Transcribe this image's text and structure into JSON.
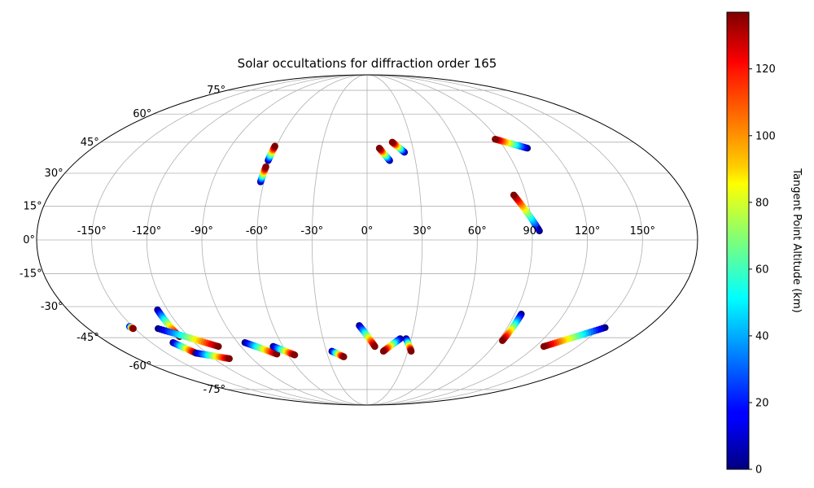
{
  "chart_data": {
    "type": "scatter",
    "projection": "mollweide",
    "title": "Solar occultations for diffraction order 165",
    "xlabel": "",
    "ylabel": "",
    "xlim": [
      -180,
      180
    ],
    "ylim": [
      -90,
      90
    ],
    "grid": true,
    "lon_tick_labels": [
      "-150°",
      "-120°",
      "-90°",
      "-60°",
      "-30°",
      "0°",
      "30°",
      "60°",
      "90°",
      "120°",
      "150°"
    ],
    "lat_tick_labels": [
      "75°",
      "60°",
      "45°",
      "30°",
      "15°",
      "0°",
      "-15°",
      "-30°",
      "-45°",
      "-60°",
      "-75°"
    ],
    "colorbar": {
      "label": "Tangent Point Altitude (km)",
      "colormap": "jet",
      "range": [
        0,
        137
      ],
      "tick_labels": [
        "0",
        "20",
        "40",
        "60",
        "80",
        "100",
        "120"
      ]
    },
    "series": [
      {
        "lon": [
          -61.5,
          -61.0
        ],
        "lat": [
          36.0,
          43.0
        ],
        "alt": [
          0,
          137
        ]
      },
      {
        "lon": [
          -62.0,
          -61.5
        ],
        "lat": [
          26.0,
          33.0
        ],
        "alt": [
          0,
          137
        ]
      },
      {
        "lon": [
          14.0,
          8.0
        ],
        "lat": [
          36.0,
          42.0
        ],
        "alt": [
          0,
          137
        ]
      },
      {
        "lon": [
          24.0,
          17.0
        ],
        "lat": [
          40.0,
          45.0
        ],
        "alt": [
          0,
          137
        ]
      },
      {
        "lon": [
          105.0,
          88.0
        ],
        "lat": [
          42.0,
          46.5
        ],
        "alt": [
          0,
          137
        ]
      },
      {
        "lon": [
          94.0,
          83.0
        ],
        "lat": [
          4.0,
          20.0
        ],
        "alt": [
          0,
          137
        ]
      },
      {
        "lon": [
          -152.0,
          -151.0
        ],
        "lat": [
          -39.5,
          -40.5
        ],
        "alt": [
          0,
          137
        ]
      },
      {
        "lon": [
          -126.0,
          -126.0
        ],
        "lat": [
          -31.5,
          -44.5
        ],
        "alt": [
          0,
          137
        ]
      },
      {
        "lon": [
          -135.0,
          -106.0
        ],
        "lat": [
          -40.5,
          -49.5
        ],
        "alt": [
          0,
          137
        ]
      },
      {
        "lon": [
          -135.0,
          -128.0
        ],
        "lat": [
          -47.5,
          -53.0
        ],
        "alt": [
          0,
          137
        ]
      },
      {
        "lon": [
          -128.0,
          -108.0
        ],
        "lat": [
          -53.0,
          -56.0
        ],
        "alt": [
          0,
          137
        ]
      },
      {
        "lon": [
          -85.0,
          -68.0
        ],
        "lat": [
          -47.5,
          -53.5
        ],
        "alt": [
          0,
          137
        ]
      },
      {
        "lon": [
          -67.0,
          -55.0
        ],
        "lat": [
          -49.5,
          -54.0
        ],
        "alt": [
          0,
          137
        ]
      },
      {
        "lon": [
          -26.0,
          -18.0
        ],
        "lat": [
          -52.0,
          -55.0
        ],
        "alt": [
          0,
          137
        ]
      },
      {
        "lon": [
          -5.0,
          5.5
        ],
        "lat": [
          -39.0,
          -49.5
        ],
        "alt": [
          0,
          137
        ]
      },
      {
        "lon": [
          22.5,
          12.0
        ],
        "lat": [
          -45.5,
          -52.0
        ],
        "alt": [
          0,
          137
        ]
      },
      {
        "lon": [
          26.5,
          32.5
        ],
        "lat": [
          -45.5,
          -52.0
        ],
        "alt": [
          0,
          137
        ]
      },
      {
        "lon": [
          94.0,
          93.0
        ],
        "lat": [
          -33.5,
          -46.5
        ],
        "alt": [
          0,
          137
        ]
      },
      {
        "lon": [
          153.0,
          126.0
        ],
        "lat": [
          -40.0,
          -49.5
        ],
        "alt": [
          0,
          137
        ]
      }
    ]
  }
}
